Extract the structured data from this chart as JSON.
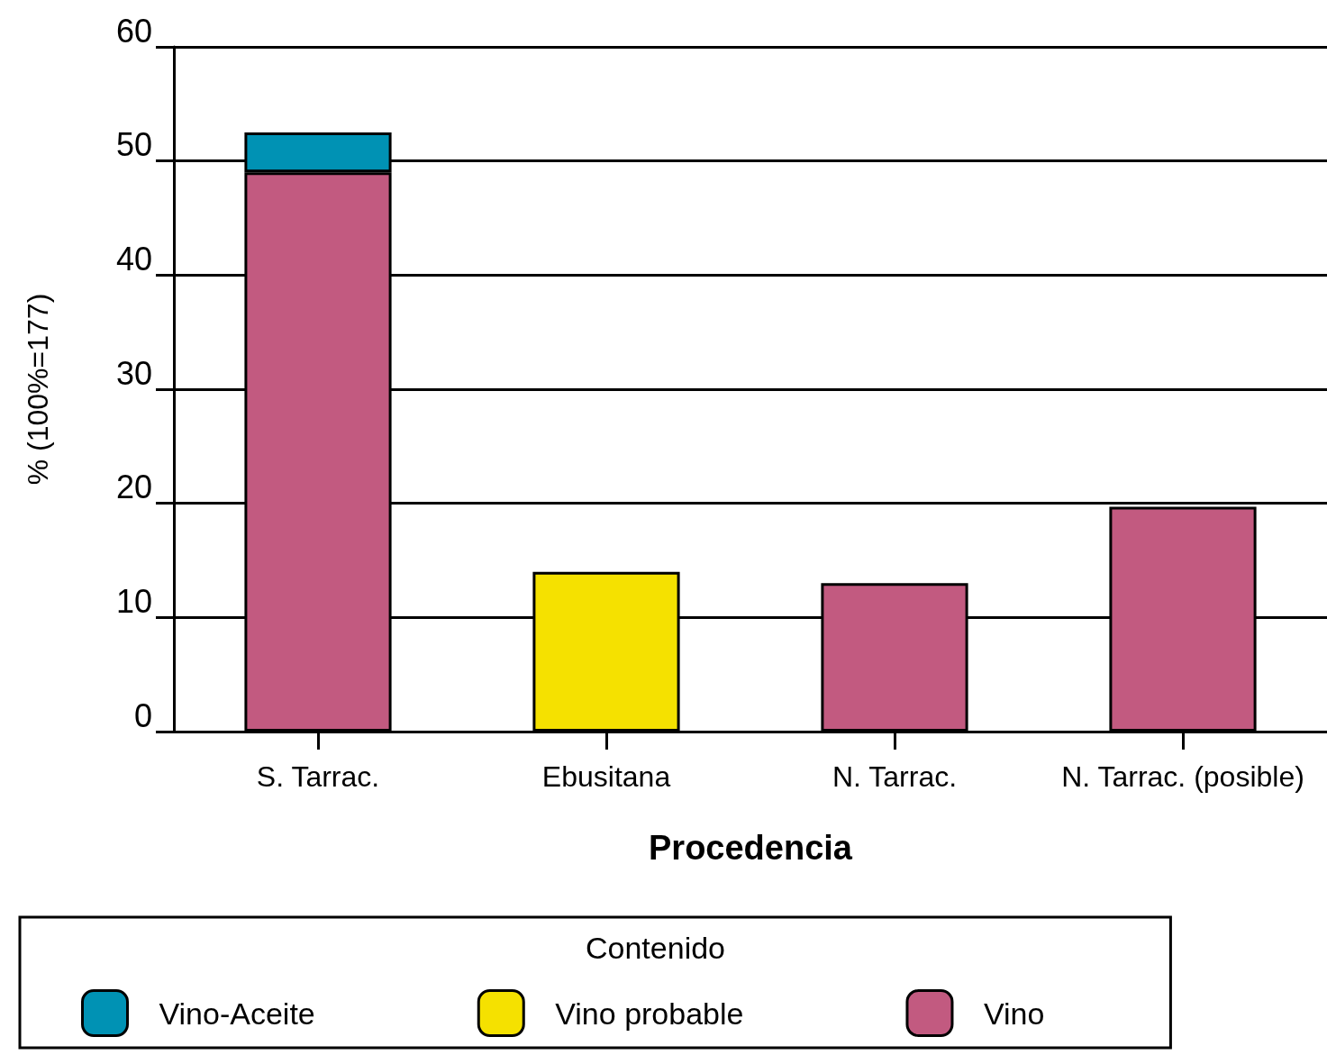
{
  "chart_data": {
    "type": "bar",
    "xlabel": "Procedencia",
    "ylabel": "% (100%=177)",
    "legend_title": "Contenido",
    "categories": [
      "S. Tarrac.",
      "Ebusitana",
      "N. Tarrac.",
      "N. Tarrac. (posible)"
    ],
    "stacked": true,
    "series": [
      {
        "name": "Vino",
        "color": "#c25a80",
        "values": [
          49,
          null,
          13,
          19.7
        ]
      },
      {
        "name": "Vino probable",
        "color": "#f5e100",
        "values": [
          null,
          14,
          null,
          null
        ]
      },
      {
        "name": "Vino-Aceite",
        "color": "#0092b4",
        "values": [
          3.5,
          null,
          null,
          null
        ]
      }
    ],
    "ylim": [
      0,
      60
    ],
    "yticks": [
      0,
      10,
      20,
      30,
      40,
      50,
      60
    ],
    "grid": "y",
    "legend": "bottom"
  }
}
